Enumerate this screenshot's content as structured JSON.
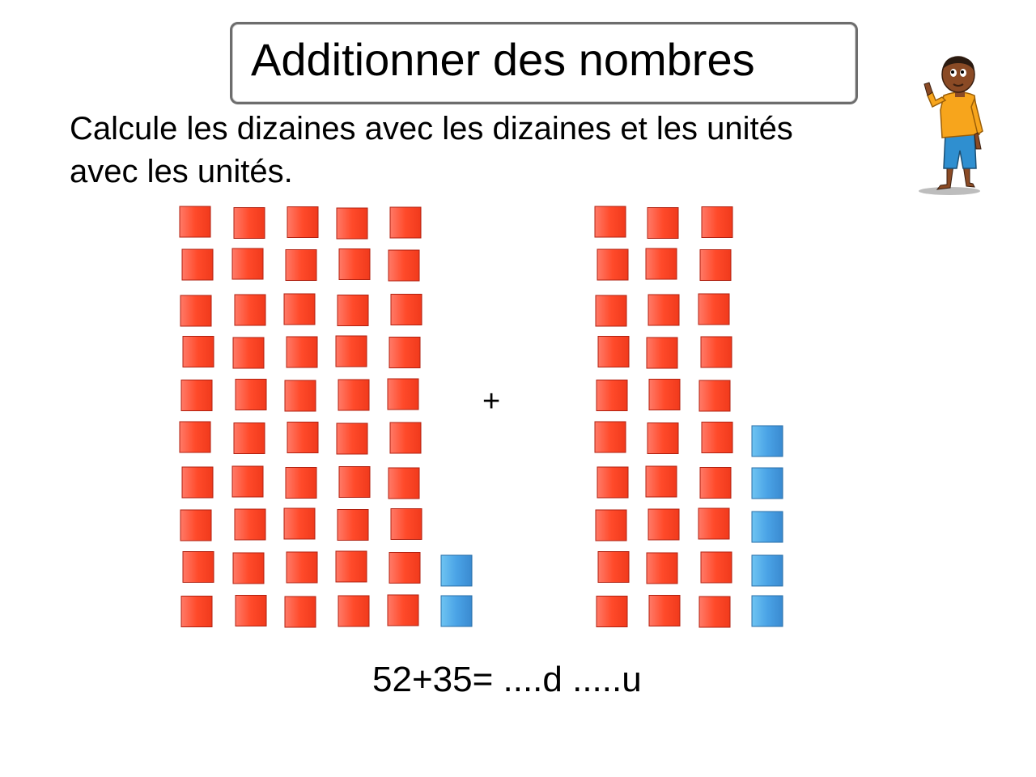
{
  "title": "Additionner des nombres",
  "instruction": {
    "line1": "Calcule les dizaines avec les dizaines et les unités",
    "line2": "avec les unités."
  },
  "operator": "+",
  "equation": "52+35= ....d .....u",
  "left_number": {
    "tens": 5,
    "units": 2
  },
  "right_number": {
    "tens": 3,
    "units": 5
  },
  "colors": {
    "ten_block": "#ff4a2a",
    "unit_block": "#4aa3e6",
    "title_border": "#6d6d6d"
  },
  "icons": [
    "boy-character-icon"
  ]
}
